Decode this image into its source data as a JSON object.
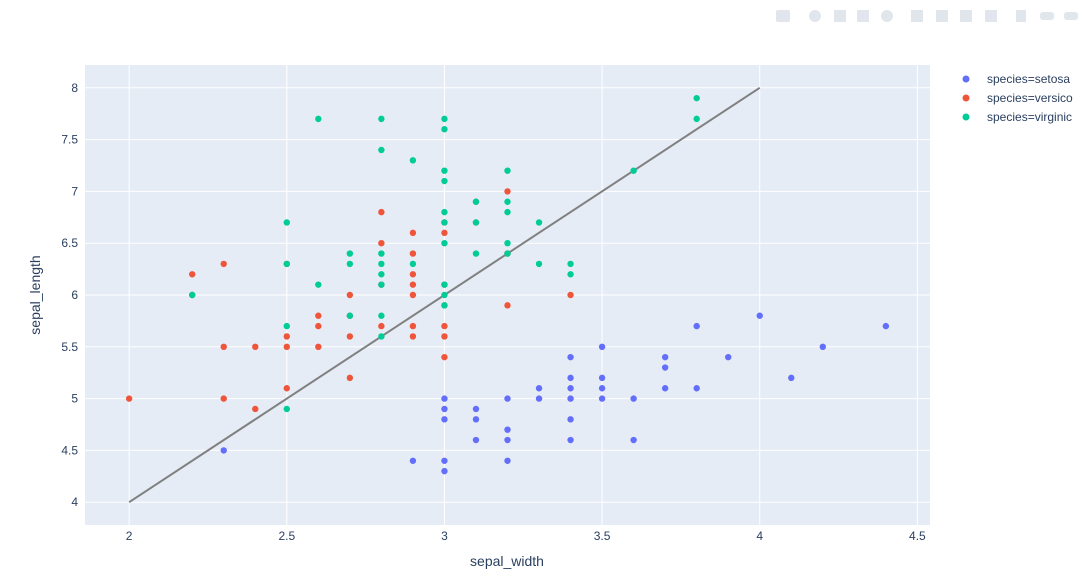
{
  "chart_data": {
    "type": "scatter",
    "title": "",
    "xlabel": "sepal_width",
    "ylabel": "sepal_length",
    "xlim": [
      1.86,
      4.54
    ],
    "ylim": [
      3.78,
      8.22
    ],
    "xticks": [
      2,
      2.5,
      3,
      3.5,
      4,
      4.5
    ],
    "yticks": [
      4,
      4.5,
      5,
      5.5,
      6,
      6.5,
      7,
      7.5,
      8
    ],
    "xtick_labels": [
      "2",
      "2.5",
      "3",
      "3.5",
      "4",
      "4.5"
    ],
    "ytick_labels": [
      "4",
      "4.5",
      "5",
      "5.5",
      "6",
      "6.5",
      "7",
      "7.5",
      "8"
    ],
    "grid": true,
    "legend_position": "right",
    "series": [
      {
        "name": "species=setosa",
        "legend_label": "species=setosa",
        "color": "#636efa",
        "points": [
          [
            2.3,
            4.5
          ],
          [
            2.9,
            4.4
          ],
          [
            3.0,
            4.4
          ],
          [
            3.0,
            4.3
          ],
          [
            3.0,
            5.0
          ],
          [
            3.0,
            4.9
          ],
          [
            3.0,
            4.8
          ],
          [
            3.1,
            4.9
          ],
          [
            3.1,
            4.8
          ],
          [
            3.1,
            4.6
          ],
          [
            3.2,
            5.0
          ],
          [
            3.2,
            4.7
          ],
          [
            3.2,
            4.6
          ],
          [
            3.2,
            4.4
          ],
          [
            3.3,
            5.1
          ],
          [
            3.3,
            5.0
          ],
          [
            3.4,
            5.4
          ],
          [
            3.4,
            5.2
          ],
          [
            3.4,
            5.1
          ],
          [
            3.4,
            5.0
          ],
          [
            3.4,
            4.8
          ],
          [
            3.4,
            4.6
          ],
          [
            3.5,
            5.5
          ],
          [
            3.5,
            5.2
          ],
          [
            3.5,
            5.1
          ],
          [
            3.5,
            5.0
          ],
          [
            3.6,
            5.0
          ],
          [
            3.6,
            4.6
          ],
          [
            3.7,
            5.4
          ],
          [
            3.7,
            5.3
          ],
          [
            3.7,
            5.1
          ],
          [
            3.8,
            5.7
          ],
          [
            3.8,
            5.1
          ],
          [
            3.9,
            5.4
          ],
          [
            4.0,
            5.8
          ],
          [
            4.1,
            5.2
          ],
          [
            4.2,
            5.5
          ],
          [
            4.4,
            5.7
          ]
        ]
      },
      {
        "name": "species=versicolor",
        "legend_label": "species=versico",
        "color": "#ef553b",
        "points": [
          [
            2.0,
            5.0
          ],
          [
            2.2,
            6.2
          ],
          [
            2.2,
            6.0
          ],
          [
            2.3,
            6.3
          ],
          [
            2.3,
            5.5
          ],
          [
            2.3,
            5.0
          ],
          [
            2.4,
            5.5
          ],
          [
            2.4,
            4.9
          ],
          [
            2.5,
            5.6
          ],
          [
            2.5,
            5.5
          ],
          [
            2.5,
            5.1
          ],
          [
            2.5,
            6.3
          ],
          [
            2.6,
            5.8
          ],
          [
            2.6,
            5.7
          ],
          [
            2.6,
            5.5
          ],
          [
            2.7,
            6.0
          ],
          [
            2.7,
            5.8
          ],
          [
            2.7,
            5.6
          ],
          [
            2.7,
            5.2
          ],
          [
            2.8,
            6.8
          ],
          [
            2.8,
            6.5
          ],
          [
            2.8,
            6.1
          ],
          [
            2.8,
            5.7
          ],
          [
            2.9,
            6.6
          ],
          [
            2.9,
            6.4
          ],
          [
            2.9,
            6.2
          ],
          [
            2.9,
            6.1
          ],
          [
            2.9,
            6.0
          ],
          [
            2.9,
            5.7
          ],
          [
            2.9,
            5.6
          ],
          [
            3.0,
            6.7
          ],
          [
            3.0,
            6.6
          ],
          [
            3.0,
            6.1
          ],
          [
            3.0,
            5.9
          ],
          [
            3.0,
            5.7
          ],
          [
            3.0,
            5.6
          ],
          [
            3.0,
            5.4
          ],
          [
            3.1,
            6.9
          ],
          [
            3.1,
            6.7
          ],
          [
            3.2,
            7.0
          ],
          [
            3.2,
            6.4
          ],
          [
            3.2,
            5.9
          ],
          [
            3.4,
            6.0
          ]
        ]
      },
      {
        "name": "species=virginica",
        "legend_label": "species=virginic",
        "color": "#00cc96",
        "points": [
          [
            2.2,
            6.0
          ],
          [
            2.5,
            6.7
          ],
          [
            2.5,
            6.3
          ],
          [
            2.5,
            5.7
          ],
          [
            2.5,
            4.9
          ],
          [
            2.6,
            7.7
          ],
          [
            2.6,
            6.1
          ],
          [
            2.7,
            6.4
          ],
          [
            2.7,
            6.3
          ],
          [
            2.7,
            5.8
          ],
          [
            2.8,
            7.7
          ],
          [
            2.8,
            7.4
          ],
          [
            2.8,
            6.4
          ],
          [
            2.8,
            6.3
          ],
          [
            2.8,
            6.2
          ],
          [
            2.8,
            6.1
          ],
          [
            2.8,
            5.8
          ],
          [
            2.8,
            5.6
          ],
          [
            2.9,
            7.3
          ],
          [
            2.9,
            6.3
          ],
          [
            3.0,
            7.7
          ],
          [
            3.0,
            7.6
          ],
          [
            3.0,
            7.2
          ],
          [
            3.0,
            7.1
          ],
          [
            3.0,
            6.8
          ],
          [
            3.0,
            6.7
          ],
          [
            3.0,
            6.5
          ],
          [
            3.0,
            6.1
          ],
          [
            3.0,
            6.0
          ],
          [
            3.0,
            5.9
          ],
          [
            3.1,
            6.9
          ],
          [
            3.1,
            6.7
          ],
          [
            3.1,
            6.4
          ],
          [
            3.2,
            7.2
          ],
          [
            3.2,
            6.9
          ],
          [
            3.2,
            6.8
          ],
          [
            3.2,
            6.5
          ],
          [
            3.2,
            6.4
          ],
          [
            3.3,
            6.7
          ],
          [
            3.3,
            6.3
          ],
          [
            3.4,
            6.3
          ],
          [
            3.4,
            6.2
          ],
          [
            3.6,
            7.2
          ],
          [
            3.8,
            7.9
          ],
          [
            3.8,
            7.7
          ]
        ]
      }
    ],
    "line": {
      "color": "#808080",
      "points": [
        [
          2.0,
          4.0
        ],
        [
          4.0,
          8.0
        ]
      ]
    }
  }
}
